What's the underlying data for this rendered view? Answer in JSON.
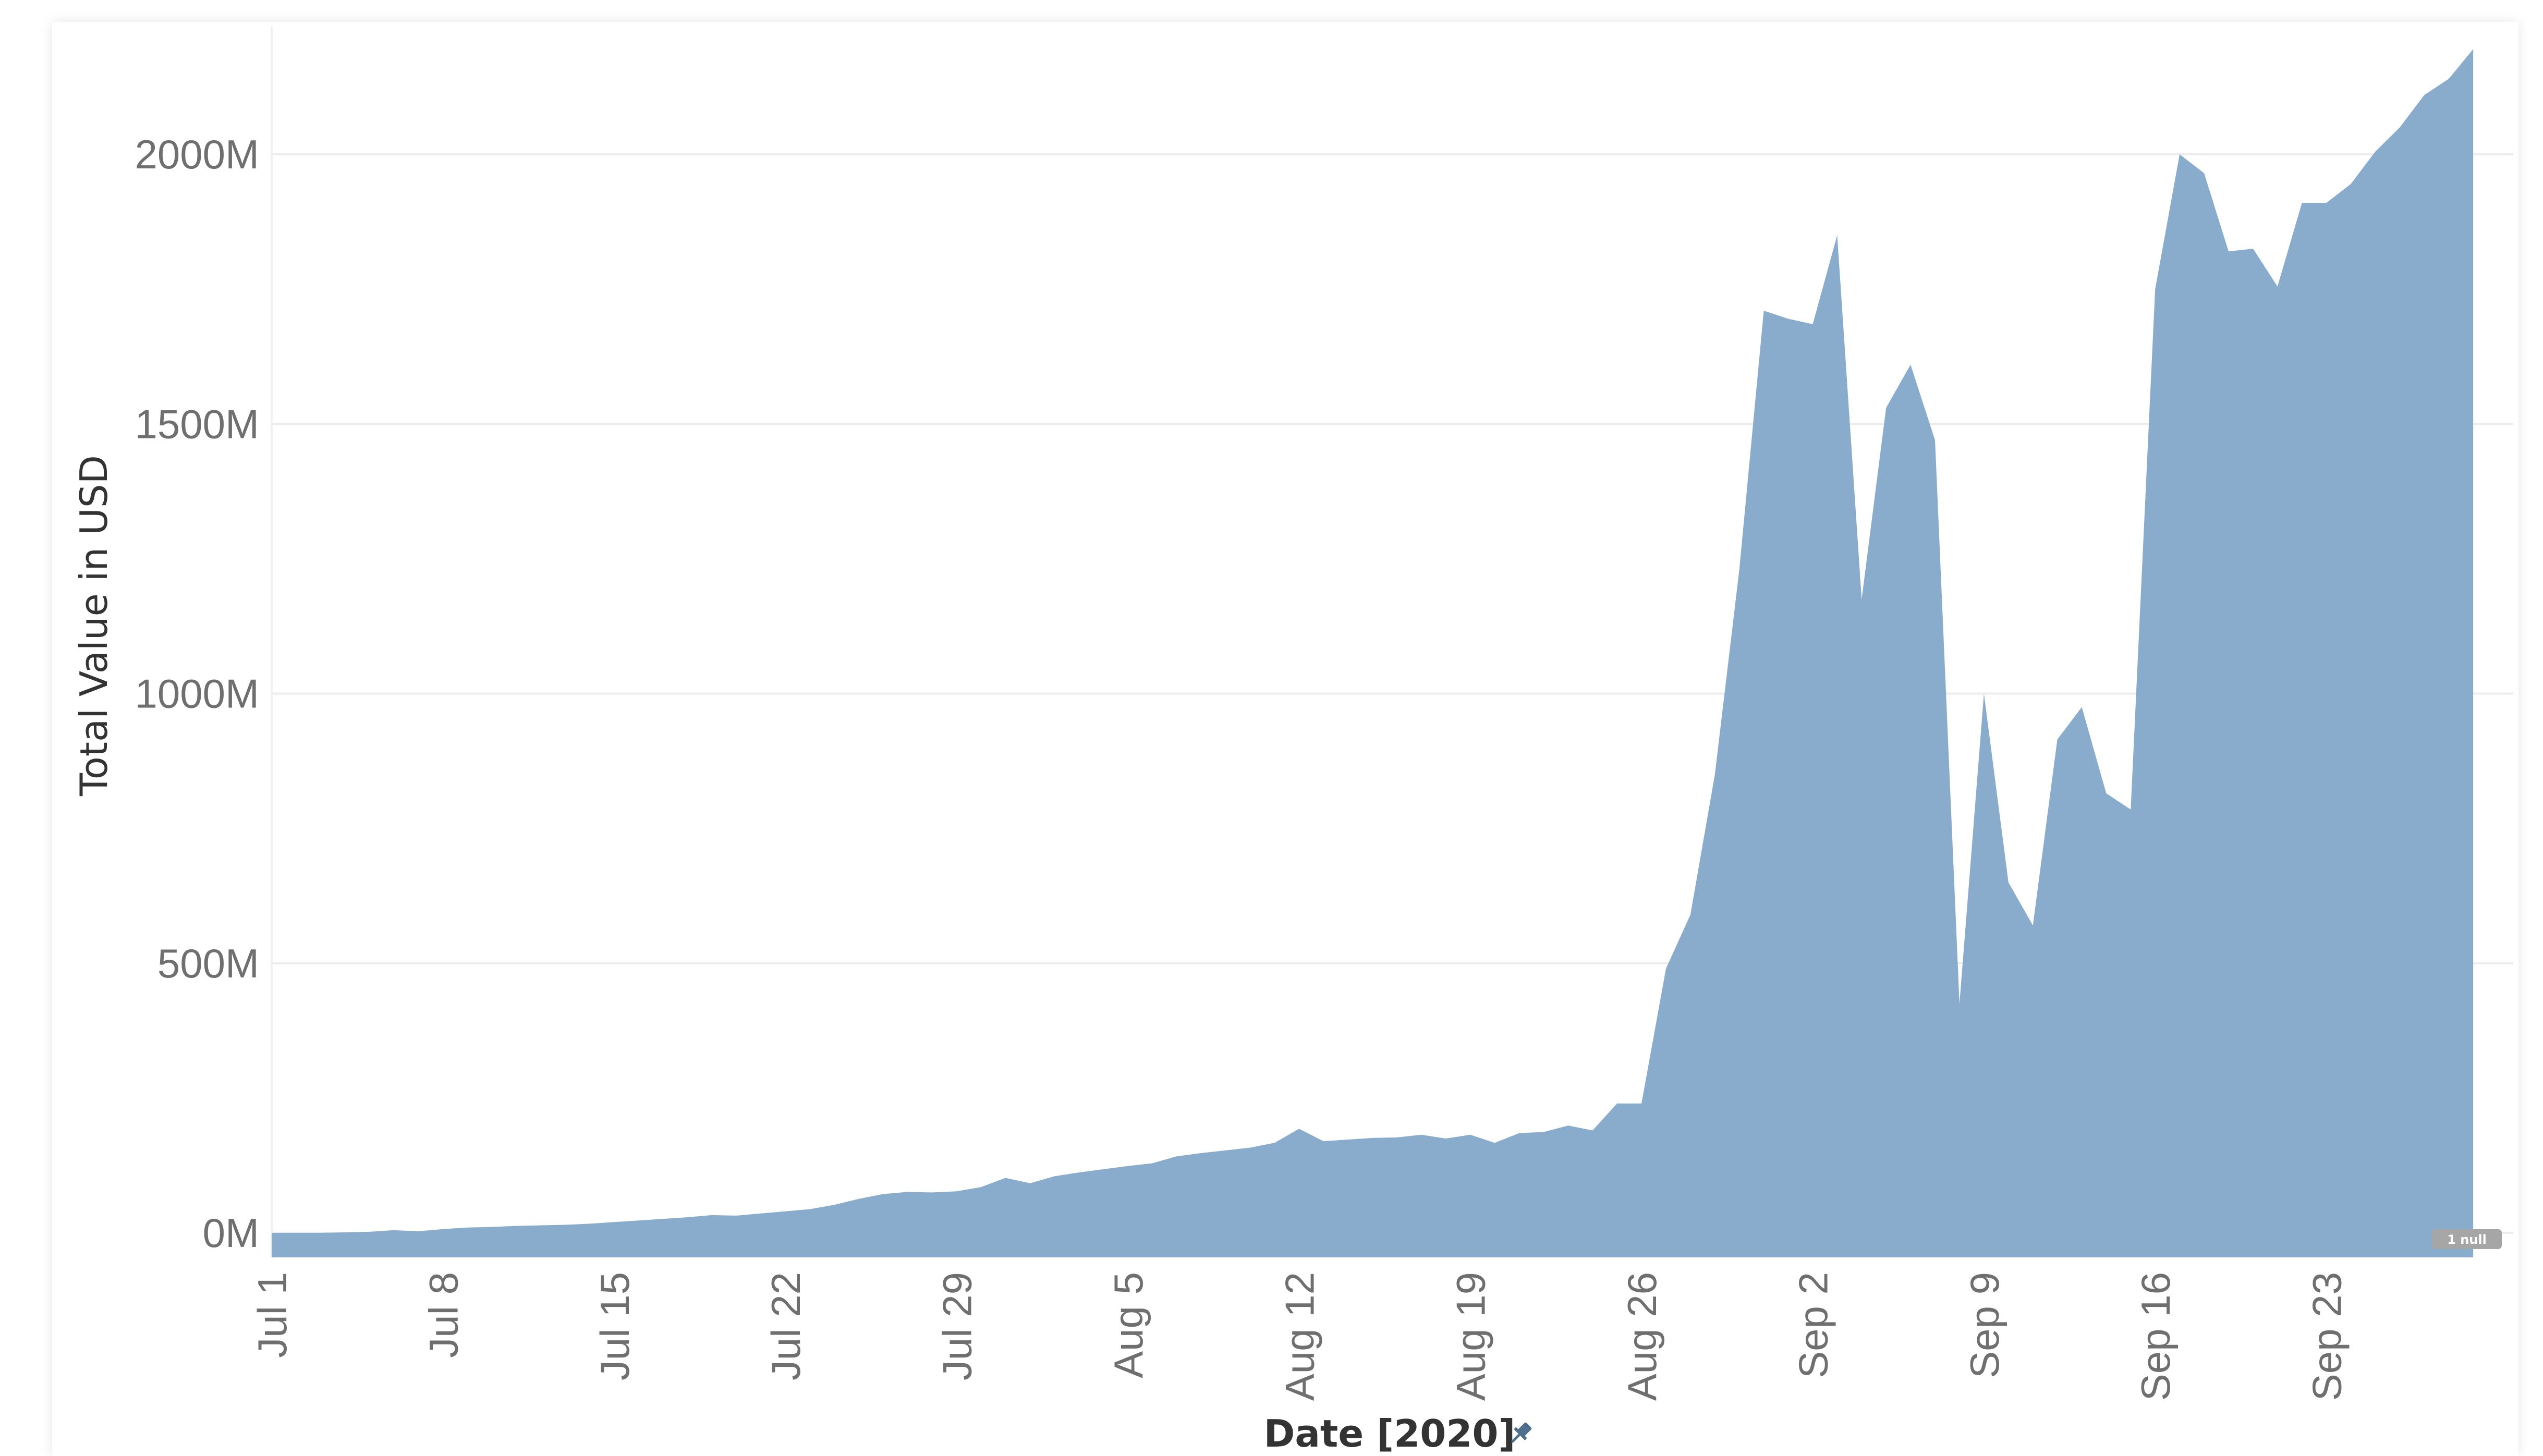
{
  "chart_data": {
    "type": "area",
    "xlabel": "Date [2020]",
    "ylabel": "Total Value in USD",
    "x_start": "2020-07-01",
    "x_end": "2020-09-30",
    "ylim": [
      -45,
      2220
    ],
    "yticks": [
      {
        "value": 0,
        "label": "0M"
      },
      {
        "value": 500,
        "label": "500M"
      },
      {
        "value": 1000,
        "label": "1000M"
      },
      {
        "value": 1500,
        "label": "1500M"
      },
      {
        "value": 2000,
        "label": "2000M"
      }
    ],
    "xticks": [
      {
        "date": "2020-07-01",
        "label": "Jul 1"
      },
      {
        "date": "2020-07-08",
        "label": "Jul 8"
      },
      {
        "date": "2020-07-15",
        "label": "Jul 15"
      },
      {
        "date": "2020-07-22",
        "label": "Jul 22"
      },
      {
        "date": "2020-07-29",
        "label": "Jul 29"
      },
      {
        "date": "2020-08-05",
        "label": "Aug 5"
      },
      {
        "date": "2020-08-12",
        "label": "Aug 12"
      },
      {
        "date": "2020-08-19",
        "label": "Aug 19"
      },
      {
        "date": "2020-08-26",
        "label": "Aug 26"
      },
      {
        "date": "2020-09-02",
        "label": "Sep 2"
      },
      {
        "date": "2020-09-09",
        "label": "Sep 9"
      },
      {
        "date": "2020-09-16",
        "label": "Sep 16"
      },
      {
        "date": "2020-09-23",
        "label": "Sep 23"
      }
    ],
    "series": [
      {
        "color": "#8aaccc",
        "points": [
          {
            "date": "2020-07-01",
            "value": 0
          },
          {
            "date": "2020-07-02",
            "value": 0
          },
          {
            "date": "2020-07-03",
            "value": 0
          },
          {
            "date": "2020-07-04",
            "value": 1
          },
          {
            "date": "2020-07-05",
            "value": 2
          },
          {
            "date": "2020-07-06",
            "value": 5
          },
          {
            "date": "2020-07-07",
            "value": 3
          },
          {
            "date": "2020-07-08",
            "value": 7
          },
          {
            "date": "2020-07-09",
            "value": 10
          },
          {
            "date": "2020-07-10",
            "value": 11
          },
          {
            "date": "2020-07-11",
            "value": 13
          },
          {
            "date": "2020-07-12",
            "value": 14
          },
          {
            "date": "2020-07-13",
            "value": 15
          },
          {
            "date": "2020-07-14",
            "value": 17
          },
          {
            "date": "2020-07-15",
            "value": 20
          },
          {
            "date": "2020-07-16",
            "value": 23
          },
          {
            "date": "2020-07-17",
            "value": 26
          },
          {
            "date": "2020-07-18",
            "value": 29
          },
          {
            "date": "2020-07-19",
            "value": 33
          },
          {
            "date": "2020-07-20",
            "value": 32
          },
          {
            "date": "2020-07-21",
            "value": 36
          },
          {
            "date": "2020-07-22",
            "value": 40
          },
          {
            "date": "2020-07-23",
            "value": 44
          },
          {
            "date": "2020-07-24",
            "value": 52
          },
          {
            "date": "2020-07-25",
            "value": 63
          },
          {
            "date": "2020-07-26",
            "value": 72
          },
          {
            "date": "2020-07-27",
            "value": 76
          },
          {
            "date": "2020-07-28",
            "value": 75
          },
          {
            "date": "2020-07-29",
            "value": 77
          },
          {
            "date": "2020-07-30",
            "value": 85
          },
          {
            "date": "2020-07-31",
            "value": 102
          },
          {
            "date": "2020-08-01",
            "value": 92
          },
          {
            "date": "2020-08-02",
            "value": 105
          },
          {
            "date": "2020-08-03",
            "value": 112
          },
          {
            "date": "2020-08-04",
            "value": 118
          },
          {
            "date": "2020-08-05",
            "value": 124
          },
          {
            "date": "2020-08-06",
            "value": 129
          },
          {
            "date": "2020-08-07",
            "value": 142
          },
          {
            "date": "2020-08-08",
            "value": 148
          },
          {
            "date": "2020-08-09",
            "value": 153
          },
          {
            "date": "2020-08-10",
            "value": 158
          },
          {
            "date": "2020-08-11",
            "value": 167
          },
          {
            "date": "2020-08-12",
            "value": 193
          },
          {
            "date": "2020-08-13",
            "value": 170
          },
          {
            "date": "2020-08-14",
            "value": 173
          },
          {
            "date": "2020-08-15",
            "value": 176
          },
          {
            "date": "2020-08-16",
            "value": 177
          },
          {
            "date": "2020-08-17",
            "value": 182
          },
          {
            "date": "2020-08-18",
            "value": 175
          },
          {
            "date": "2020-08-19",
            "value": 182
          },
          {
            "date": "2020-08-20",
            "value": 167
          },
          {
            "date": "2020-08-21",
            "value": 185
          },
          {
            "date": "2020-08-22",
            "value": 187
          },
          {
            "date": "2020-08-23",
            "value": 199
          },
          {
            "date": "2020-08-24",
            "value": 190
          },
          {
            "date": "2020-08-25",
            "value": 240
          },
          {
            "date": "2020-08-26",
            "value": 240
          },
          {
            "date": "2020-08-27",
            "value": 490
          },
          {
            "date": "2020-08-28",
            "value": 590
          },
          {
            "date": "2020-08-29",
            "value": 850
          },
          {
            "date": "2020-08-30",
            "value": 1230
          },
          {
            "date": "2020-08-31",
            "value": 1710
          },
          {
            "date": "2020-09-01",
            "value": 1695
          },
          {
            "date": "2020-09-02",
            "value": 1685
          },
          {
            "date": "2020-09-03",
            "value": 1850
          },
          {
            "date": "2020-09-04",
            "value": 1175
          },
          {
            "date": "2020-09-05",
            "value": 1530
          },
          {
            "date": "2020-09-06",
            "value": 1610
          },
          {
            "date": "2020-09-07",
            "value": 1470
          },
          {
            "date": "2020-09-08",
            "value": 425
          },
          {
            "date": "2020-09-09",
            "value": 1000
          },
          {
            "date": "2020-09-10",
            "value": 650
          },
          {
            "date": "2020-09-11",
            "value": 570
          },
          {
            "date": "2020-09-12",
            "value": 915
          },
          {
            "date": "2020-09-13",
            "value": 975
          },
          {
            "date": "2020-09-14",
            "value": 815
          },
          {
            "date": "2020-09-15",
            "value": 785
          },
          {
            "date": "2020-09-16",
            "value": 1750
          },
          {
            "date": "2020-09-17",
            "value": 2000
          },
          {
            "date": "2020-09-18",
            "value": 1965
          },
          {
            "date": "2020-09-19",
            "value": 1820
          },
          {
            "date": "2020-09-20",
            "value": 1825
          },
          {
            "date": "2020-09-21",
            "value": 1755
          },
          {
            "date": "2020-09-22",
            "value": 1910
          },
          {
            "date": "2020-09-23",
            "value": 1910
          },
          {
            "date": "2020-09-24",
            "value": 1945
          },
          {
            "date": "2020-09-25",
            "value": 2005
          },
          {
            "date": "2020-09-26",
            "value": 2050
          },
          {
            "date": "2020-09-27",
            "value": 2110
          },
          {
            "date": "2020-09-28",
            "value": 2140
          },
          {
            "date": "2020-09-29",
            "value": 2195
          }
        ]
      }
    ],
    "grid": true,
    "null_indicator": "1 null"
  }
}
